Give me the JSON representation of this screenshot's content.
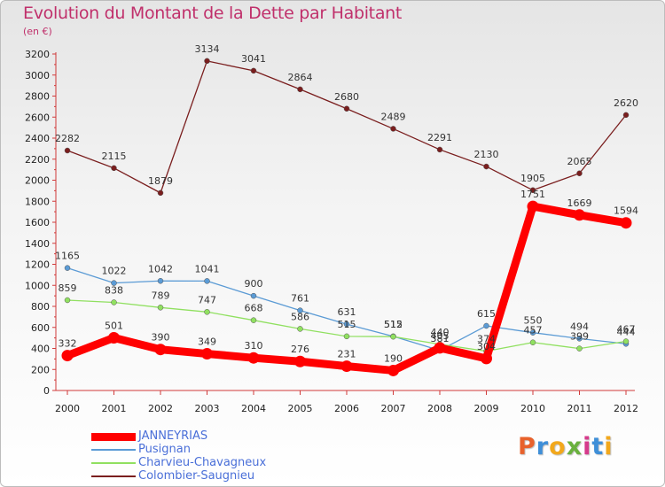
{
  "header": {
    "title": "Evolution du Montant de la Dette par Habitant",
    "subtitle": "(en €)"
  },
  "logo": {
    "text": "Proxiti",
    "letters": [
      "P",
      "r",
      "o",
      "x",
      "i",
      "t",
      "i"
    ],
    "colors": [
      "#e8622c",
      "#3f8fd8",
      "#f2a81c",
      "#6ab13e",
      "#d63b8c",
      "#3f8fd8",
      "#f2a81c"
    ]
  },
  "chart_data": {
    "type": "line",
    "title": "Evolution du Montant de la Dette par Habitant",
    "subtitle": "(en €)",
    "x": [
      "2000",
      "2001",
      "2002",
      "2003",
      "2004",
      "2005",
      "2006",
      "2007",
      "2008",
      "2009",
      "2010",
      "2011",
      "2012"
    ],
    "ylim": [
      0,
      3200
    ],
    "yticks": [
      0,
      200,
      400,
      600,
      800,
      1000,
      1200,
      1400,
      1600,
      1800,
      2000,
      2200,
      2400,
      2600,
      2800,
      3000,
      3200
    ],
    "grid": false,
    "legend_position": "bottom-left",
    "series": [
      {
        "name": "JANNEYRIAS",
        "color": "#ff0000",
        "emphasis": true,
        "values": [
          332,
          501,
          390,
          349,
          310,
          276,
          231,
          190,
          405,
          304,
          1751,
          1669,
          1594
        ],
        "labels": [
          "332",
          "501",
          "390",
          "349",
          "310",
          "276",
          "231",
          "190",
          "405",
          "304",
          "1751",
          "1669",
          "1594"
        ]
      },
      {
        "name": "Pusignan",
        "color": "#5b9bd5",
        "values": [
          1165,
          1022,
          1042,
          1041,
          900,
          761,
          631,
          515,
          381,
          615,
          550,
          494,
          444
        ],
        "labels": [
          "1165",
          "1022",
          "1042",
          "1041",
          "900",
          "761",
          "631",
          "515",
          "381",
          "615",
          "550",
          "494",
          "444"
        ]
      },
      {
        "name": "Charvieu-Chavagneux",
        "color": "#90e060",
        "values": [
          859,
          838,
          789,
          747,
          668,
          586,
          515,
          512,
          440,
          374,
          457,
          399,
          467
        ],
        "labels": [
          "859",
          "838",
          "789",
          "747",
          "668",
          "586",
          "515",
          "512",
          "440",
          "374",
          "457",
          "399",
          "467"
        ]
      },
      {
        "name": "Colombier-Saugnieu",
        "color": "#7a1e1e",
        "values": [
          2282,
          2115,
          1879,
          3134,
          3041,
          2864,
          2680,
          2489,
          2291,
          2130,
          1905,
          2065,
          2620
        ],
        "labels": [
          "2282",
          "2115",
          "1879",
          "3134",
          "3041",
          "2864",
          "2680",
          "2489",
          "2291",
          "2130",
          "1905",
          "2065",
          "2620"
        ]
      }
    ]
  }
}
